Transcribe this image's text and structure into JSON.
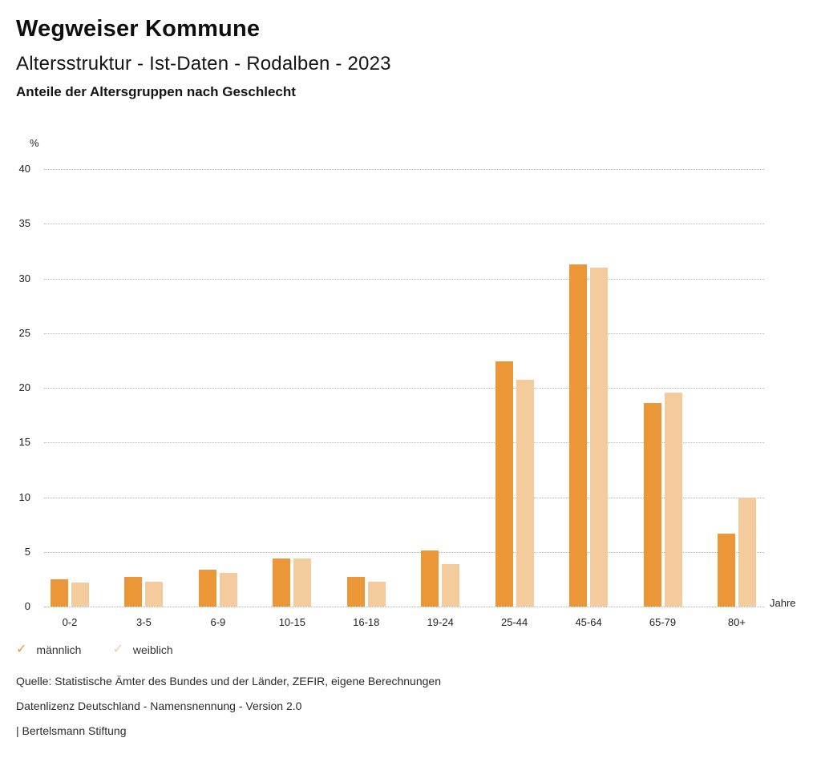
{
  "header": {
    "title": "Wegweiser Kommune",
    "subtitle": "Altersstruktur - Ist-Daten - Rodalben - 2023",
    "chart_heading": "Anteile der Altersgruppen nach Geschlecht"
  },
  "chart_data": {
    "type": "bar",
    "title": "Anteile der Altersgruppen nach Geschlecht",
    "categories": [
      "0-2",
      "3-5",
      "6-9",
      "10-15",
      "16-18",
      "19-24",
      "25-44",
      "45-64",
      "65-79",
      "80+"
    ],
    "series": [
      {
        "name": "männlich",
        "color": "#EC9737",
        "values": [
          2.5,
          2.7,
          3.4,
          4.4,
          2.7,
          5.1,
          22.4,
          31.3,
          18.6,
          6.7
        ]
      },
      {
        "name": "weiblich",
        "color": "#F4CB9D",
        "values": [
          2.2,
          2.3,
          3.1,
          4.4,
          2.3,
          3.9,
          20.7,
          31.0,
          19.6,
          10.0
        ]
      }
    ],
    "ylabel": "%",
    "xlabel": "Jahre",
    "ylim": [
      0,
      40
    ],
    "ytick_step": 5,
    "grid": "horizontal-dotted",
    "legend_position": "bottom-left",
    "gridline_color": "#b4b4b4"
  },
  "legend": {
    "check_glyph": "✓",
    "items": [
      {
        "label": "männlich",
        "color": "#EC9737"
      },
      {
        "label": "weiblich",
        "color": "#F4CB9D"
      }
    ]
  },
  "footer": {
    "source": "Quelle: Statistische Ämter des Bundes und der Länder, ZEFIR, eigene Berechnungen",
    "license": "Datenlizenz Deutschland - Namensnennung - Version 2.0",
    "attribution": "| Bertelsmann Stiftung"
  }
}
